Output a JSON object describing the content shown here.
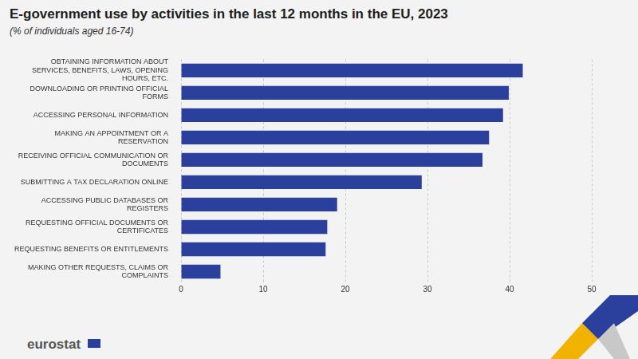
{
  "chart_data": {
    "type": "bar",
    "title": "E-government use by activities in the last 12 months in the EU, 2023",
    "subtitle": "(% of individuals aged 16-74)",
    "categories": [
      "OBTAINING INFORMATION ABOUT SERVICES, BENEFITS, LAWS, OPENING HOURS, ETC.",
      "DOWNLOADING OR PRINTING OFFICIAL FORMS",
      "ACCESSING PERSONAL INFORMATION",
      "MAKING AN APPOINTMENT OR A RESERVATION",
      "RECEIVING OFFICIAL COMMUNICATION OR DOCUMENTS",
      "SUBMITTING A TAX DECLARATION ONLINE",
      "ACCESSING PUBLIC DATABASES OR REGISTERS",
      "REQUESTING OFFICIAL DOCUMENTS OR CERTIFICATES",
      "REQUESTING BENEFITS OR ENTITLEMENTS",
      "MAKING OTHER REQUESTS, CLAIMS OR COMPLAINTS"
    ],
    "values": [
      41.6,
      39.9,
      39.2,
      37.5,
      36.7,
      29.3,
      19.0,
      17.8,
      17.6,
      4.8
    ],
    "color": "#2b3f9c",
    "orientation": "horizontal",
    "xlim": [
      0,
      50
    ],
    "xticks": [
      0,
      10,
      20,
      30,
      40,
      50
    ],
    "grid": true,
    "annotations": [
      "eurostat"
    ]
  }
}
